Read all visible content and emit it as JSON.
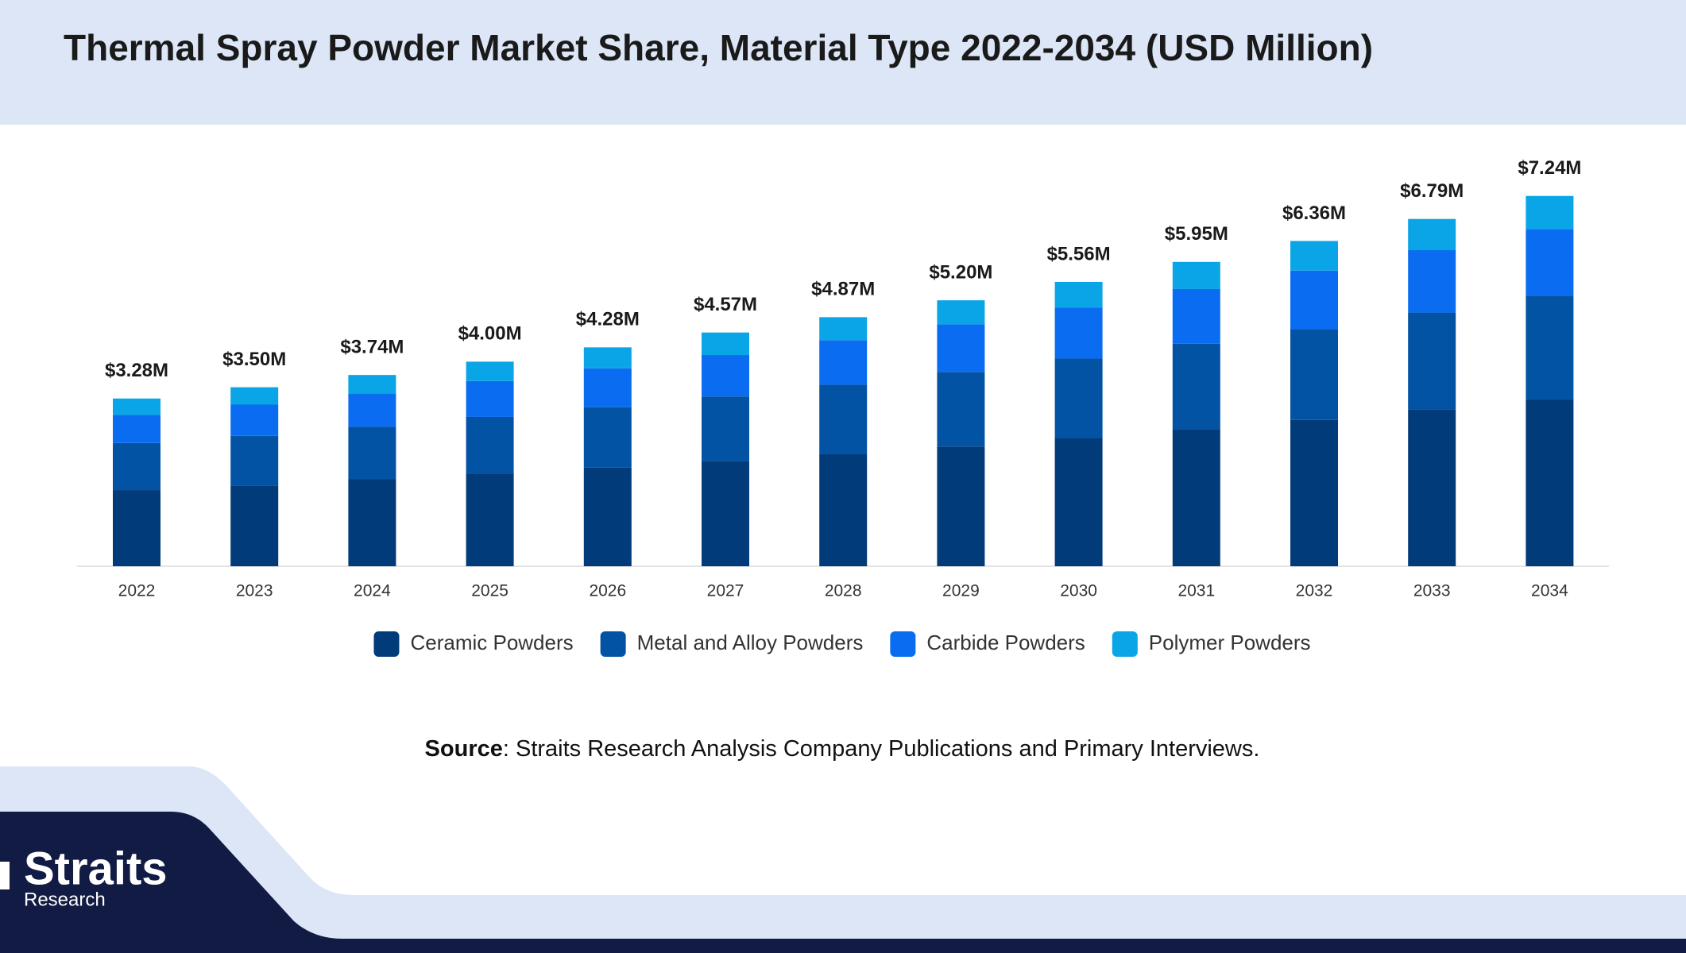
{
  "chart_data": {
    "type": "stacked-bar",
    "title": "Thermal Spray Powder Market Share, Material Type 2022-2034 (USD Million)",
    "categories": [
      "2022",
      "2023",
      "2024",
      "2025",
      "2026",
      "2027",
      "2028",
      "2029",
      "2030",
      "2031",
      "2032",
      "2033",
      "2034"
    ],
    "series": [
      {
        "name": "Ceramic Powders",
        "color": "#023b7a",
        "values": [
          1.49,
          1.58,
          1.7,
          1.81,
          1.93,
          2.06,
          2.19,
          2.34,
          2.5,
          2.68,
          2.86,
          3.06,
          3.26
        ]
      },
      {
        "name": "Metal and Alloy Powders",
        "color": "#0353a4",
        "values": [
          0.92,
          0.97,
          1.03,
          1.11,
          1.18,
          1.26,
          1.36,
          1.46,
          1.56,
          1.67,
          1.78,
          1.9,
          2.03
        ]
      },
      {
        "name": "Carbide Powders",
        "color": "#0a6cf0",
        "values": [
          0.55,
          0.61,
          0.65,
          0.7,
          0.76,
          0.81,
          0.87,
          0.93,
          1.0,
          1.07,
          1.14,
          1.22,
          1.3
        ]
      },
      {
        "name": "Polymer Powders",
        "color": "#0aa5e6",
        "values": [
          0.32,
          0.34,
          0.36,
          0.38,
          0.41,
          0.44,
          0.45,
          0.47,
          0.5,
          0.53,
          0.58,
          0.61,
          0.65
        ]
      }
    ],
    "totals": {
      "values": [
        3.28,
        3.5,
        3.74,
        4.0,
        4.28,
        4.57,
        4.87,
        5.2,
        5.56,
        5.95,
        6.36,
        6.79,
        7.24
      ],
      "value_labels": [
        "$3.28M",
        "$3.50M",
        "$3.74M",
        "$4.00M",
        "$4.28M",
        "$4.57M",
        "$4.87M",
        "$5.20M",
        "$5.56M",
        "$5.95M",
        "$6.36M",
        "$6.79M",
        "$7.24M"
      ]
    },
    "source": {
      "label": "Source",
      "text": ": Straits Research Analysis Company Publications and Primary Interviews."
    }
  },
  "logo": {
    "name": "Straits",
    "sub": "Research"
  }
}
